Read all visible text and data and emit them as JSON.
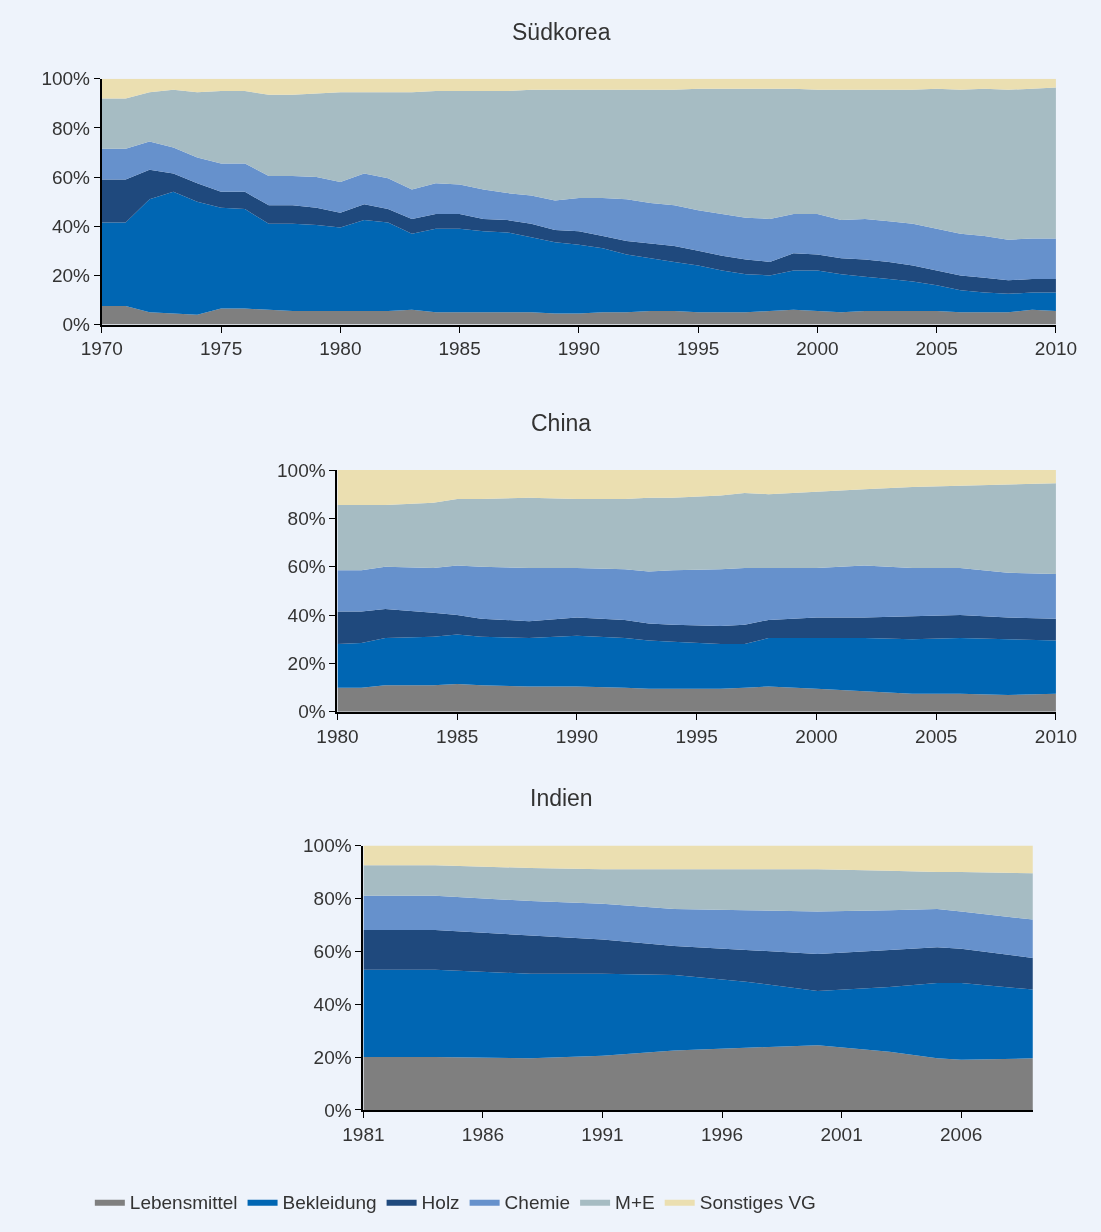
{
  "chart_data": [
    {
      "type": "area",
      "title": "Südkorea",
      "stacked": true,
      "legend": "bottom",
      "grid": false,
      "x": [
        1970,
        1971,
        1972,
        1973,
        1974,
        1975,
        1976,
        1977,
        1978,
        1979,
        1980,
        1981,
        1982,
        1983,
        1984,
        1985,
        1986,
        1987,
        1988,
        1989,
        1990,
        1991,
        1992,
        1993,
        1994,
        1995,
        1996,
        1997,
        1998,
        1999,
        2000,
        2001,
        2002,
        2003,
        2004,
        2005,
        2006,
        2007,
        2008,
        2009,
        2010
      ],
      "xlim": [
        1970,
        2010
      ],
      "xticks": [
        1970,
        1975,
        1980,
        1985,
        1990,
        1995,
        2000,
        2005,
        2010
      ],
      "ylim": [
        0,
        100
      ],
      "yticks": [
        {
          "value": 0,
          "label": "0%"
        },
        {
          "value": 20,
          "label": "20%"
        },
        {
          "value": 40,
          "label": "40%"
        },
        {
          "value": 60,
          "label": "60%"
        },
        {
          "value": 80,
          "label": "80%"
        },
        {
          "value": 100,
          "label": "100%"
        }
      ],
      "series": [
        {
          "name": "Lebensmittel",
          "color": "#7f7f7f",
          "values": [
            7.5,
            7.5,
            5,
            4.5,
            4,
            6.5,
            6.5,
            6,
            5.5,
            5.5,
            5.5,
            5.5,
            5.5,
            6,
            5,
            5,
            5,
            5,
            5,
            4.5,
            4.5,
            5,
            5,
            5.5,
            5.5,
            5,
            5,
            5,
            5.5,
            6,
            5.5,
            5,
            5.5,
            5.5,
            5.5,
            5.5,
            5,
            5,
            5,
            6,
            5.5
          ]
        },
        {
          "name": "Bekleidung",
          "color": "#0066b3",
          "values": [
            34,
            34,
            46,
            49.5,
            46,
            41,
            40.5,
            35,
            35.5,
            35,
            34,
            37,
            36,
            31,
            34,
            34,
            33,
            32.5,
            30.5,
            29,
            28,
            26,
            23.5,
            21.5,
            20,
            19,
            17,
            15.5,
            14.5,
            16,
            16.5,
            15.5,
            14,
            13,
            12,
            10.5,
            9,
            8,
            7.5,
            7,
            7.5
          ]
        },
        {
          "name": "Holz",
          "color": "#1f497d",
          "values": [
            17.5,
            17.5,
            12,
            7.5,
            7.5,
            6.5,
            7,
            7.5,
            7.5,
            7,
            6,
            6.5,
            5.5,
            6,
            6,
            6,
            5,
            5,
            5.5,
            5,
            5.5,
            5,
            5.5,
            6,
            6.5,
            6,
            6,
            6,
            5.5,
            7,
            6.5,
            6.5,
            7,
            7,
            6.5,
            6,
            6,
            6,
            5.5,
            5.5,
            5.5
          ]
        },
        {
          "name": "Chemie",
          "color": "#6691cc",
          "values": [
            12.5,
            12.5,
            11.5,
            10.5,
            10.5,
            11.5,
            11.5,
            12,
            12,
            12.5,
            12.5,
            12.5,
            12.5,
            12,
            12.5,
            12,
            12,
            11,
            11.5,
            12,
            13.5,
            15.5,
            17,
            16.5,
            16.5,
            16.5,
            17,
            17,
            17.5,
            16,
            16.5,
            15.5,
            16.5,
            16.5,
            17,
            17,
            17,
            17,
            16.5,
            16.5,
            16.5
          ]
        },
        {
          "name": "M+E",
          "color": "#a6bcc3",
          "values": [
            20.5,
            20.5,
            20,
            23.5,
            26.5,
            29.5,
            29.5,
            33,
            33,
            34,
            36.5,
            33,
            35,
            39.5,
            37.5,
            38,
            40,
            41.5,
            43,
            45,
            44,
            44,
            44.5,
            46,
            47,
            49.5,
            51,
            52.5,
            53,
            51,
            50.5,
            53,
            52.5,
            53.5,
            54.5,
            57,
            58.5,
            60,
            61,
            61,
            61.5
          ]
        },
        {
          "name": "Sonstiges VG",
          "color": "#ebdfb1",
          "values": [
            8,
            8,
            5.5,
            4.5,
            5.5,
            5,
            5,
            6.5,
            6.5,
            6,
            5.5,
            5.5,
            5.5,
            5.5,
            5,
            5,
            5,
            5,
            4.5,
            4.5,
            4.5,
            4.5,
            4.5,
            4.5,
            4.5,
            4,
            4,
            4,
            4,
            4,
            4.5,
            4.5,
            4.5,
            4.5,
            4.5,
            4,
            4.5,
            4,
            4.5,
            4,
            3.5
          ]
        }
      ]
    },
    {
      "type": "area",
      "title": "China",
      "stacked": true,
      "grid": false,
      "x": [
        1980,
        1981,
        1982,
        1984,
        1985,
        1986,
        1988,
        1990,
        1992,
        1993,
        1994,
        1996,
        1997,
        1998,
        2000,
        2002,
        2004,
        2006,
        2008,
        2010
      ],
      "xlim": [
        1980,
        2010
      ],
      "xticks": [
        1980,
        1985,
        1990,
        1995,
        2000,
        2005,
        2010
      ],
      "ylim": [
        0,
        100
      ],
      "yticks": [
        {
          "value": 0,
          "label": "0%"
        },
        {
          "value": 20,
          "label": "20%"
        },
        {
          "value": 40,
          "label": "40%"
        },
        {
          "value": 60,
          "label": "60%"
        },
        {
          "value": 80,
          "label": "80%"
        },
        {
          "value": 100,
          "label": "100%"
        }
      ],
      "series": [
        {
          "color": "#7f7f7f",
          "values": [
            10,
            10,
            11,
            11,
            11.5,
            11,
            10.5,
            10.5,
            10,
            9.5,
            9.5,
            9.5,
            10,
            10.5,
            9.5,
            8.5,
            7.5,
            7.5,
            7,
            7.5
          ]
        },
        {
          "color": "#0066b3",
          "values": [
            18,
            18.5,
            19.5,
            20,
            20.5,
            20,
            20,
            21,
            20.5,
            20,
            19.5,
            18.5,
            18,
            20,
            21,
            22,
            22.5,
            23,
            23,
            22
          ]
        },
        {
          "color": "#1f497d",
          "values": [
            13.5,
            13,
            12,
            10,
            8,
            7.5,
            7,
            7.5,
            7.5,
            7,
            7,
            7.5,
            8,
            7.5,
            8.5,
            8.5,
            9.5,
            9.5,
            9,
            9
          ]
        },
        {
          "color": "#6691cc",
          "values": [
            17,
            17,
            17.5,
            18.5,
            20.5,
            21.5,
            22,
            20.5,
            21,
            21.5,
            22.5,
            23.5,
            23.5,
            21.5,
            20.5,
            21.5,
            20,
            19.5,
            18.5,
            18.5
          ]
        },
        {
          "color": "#a6bcc3",
          "values": [
            27,
            27,
            25.5,
            27,
            27.5,
            28,
            29,
            28.5,
            29,
            30.5,
            30,
            30.5,
            31,
            30.5,
            31.5,
            31.5,
            33.5,
            34,
            36.5,
            37.5
          ]
        },
        {
          "color": "#ebdfb1",
          "values": [
            14.5,
            14.5,
            14.5,
            13.5,
            12,
            12,
            11.5,
            12,
            12,
            11.5,
            11.5,
            10.5,
            9.5,
            10,
            9,
            8,
            7,
            6.5,
            6,
            5.5
          ]
        }
      ]
    },
    {
      "type": "area",
      "title": "Indien",
      "stacked": true,
      "grid": false,
      "x": [
        1981,
        1984,
        1988,
        1991,
        1994,
        1997,
        2000,
        2003,
        2005,
        2006,
        2009
      ],
      "xlim": [
        1981,
        2009
      ],
      "xticks": [
        1981,
        1986,
        1991,
        1996,
        2001,
        2006
      ],
      "ylim": [
        0,
        100
      ],
      "yticks": [
        {
          "value": 0,
          "label": "0%"
        },
        {
          "value": 20,
          "label": "20%"
        },
        {
          "value": 40,
          "label": "40%"
        },
        {
          "value": 60,
          "label": "60%"
        },
        {
          "value": 80,
          "label": "80%"
        },
        {
          "value": 100,
          "label": "100%"
        }
      ],
      "series": [
        {
          "color": "#7f7f7f",
          "values": [
            20,
            20,
            19.5,
            20.5,
            22.5,
            23.5,
            24.5,
            22,
            19.5,
            19,
            19.5
          ]
        },
        {
          "color": "#0066b3",
          "values": [
            33,
            33,
            32,
            31,
            28.5,
            25,
            20.5,
            24.5,
            28.5,
            29,
            26
          ]
        },
        {
          "color": "#1f497d",
          "values": [
            15,
            15,
            14.5,
            13,
            11,
            12,
            14,
            14,
            13.5,
            13,
            12
          ]
        },
        {
          "color": "#6691cc",
          "values": [
            13,
            13,
            13,
            13.5,
            14,
            15,
            16,
            15,
            14.5,
            14,
            14.5
          ]
        },
        {
          "color": "#a6bcc3",
          "values": [
            11.5,
            11.5,
            12.5,
            13,
            15,
            15.5,
            16,
            15,
            14,
            15,
            17.5
          ]
        },
        {
          "color": "#ebdfb1",
          "values": [
            7.5,
            7.5,
            8.5,
            9,
            9,
            9,
            9,
            9.5,
            10,
            10,
            10.5
          ]
        }
      ]
    }
  ]
}
